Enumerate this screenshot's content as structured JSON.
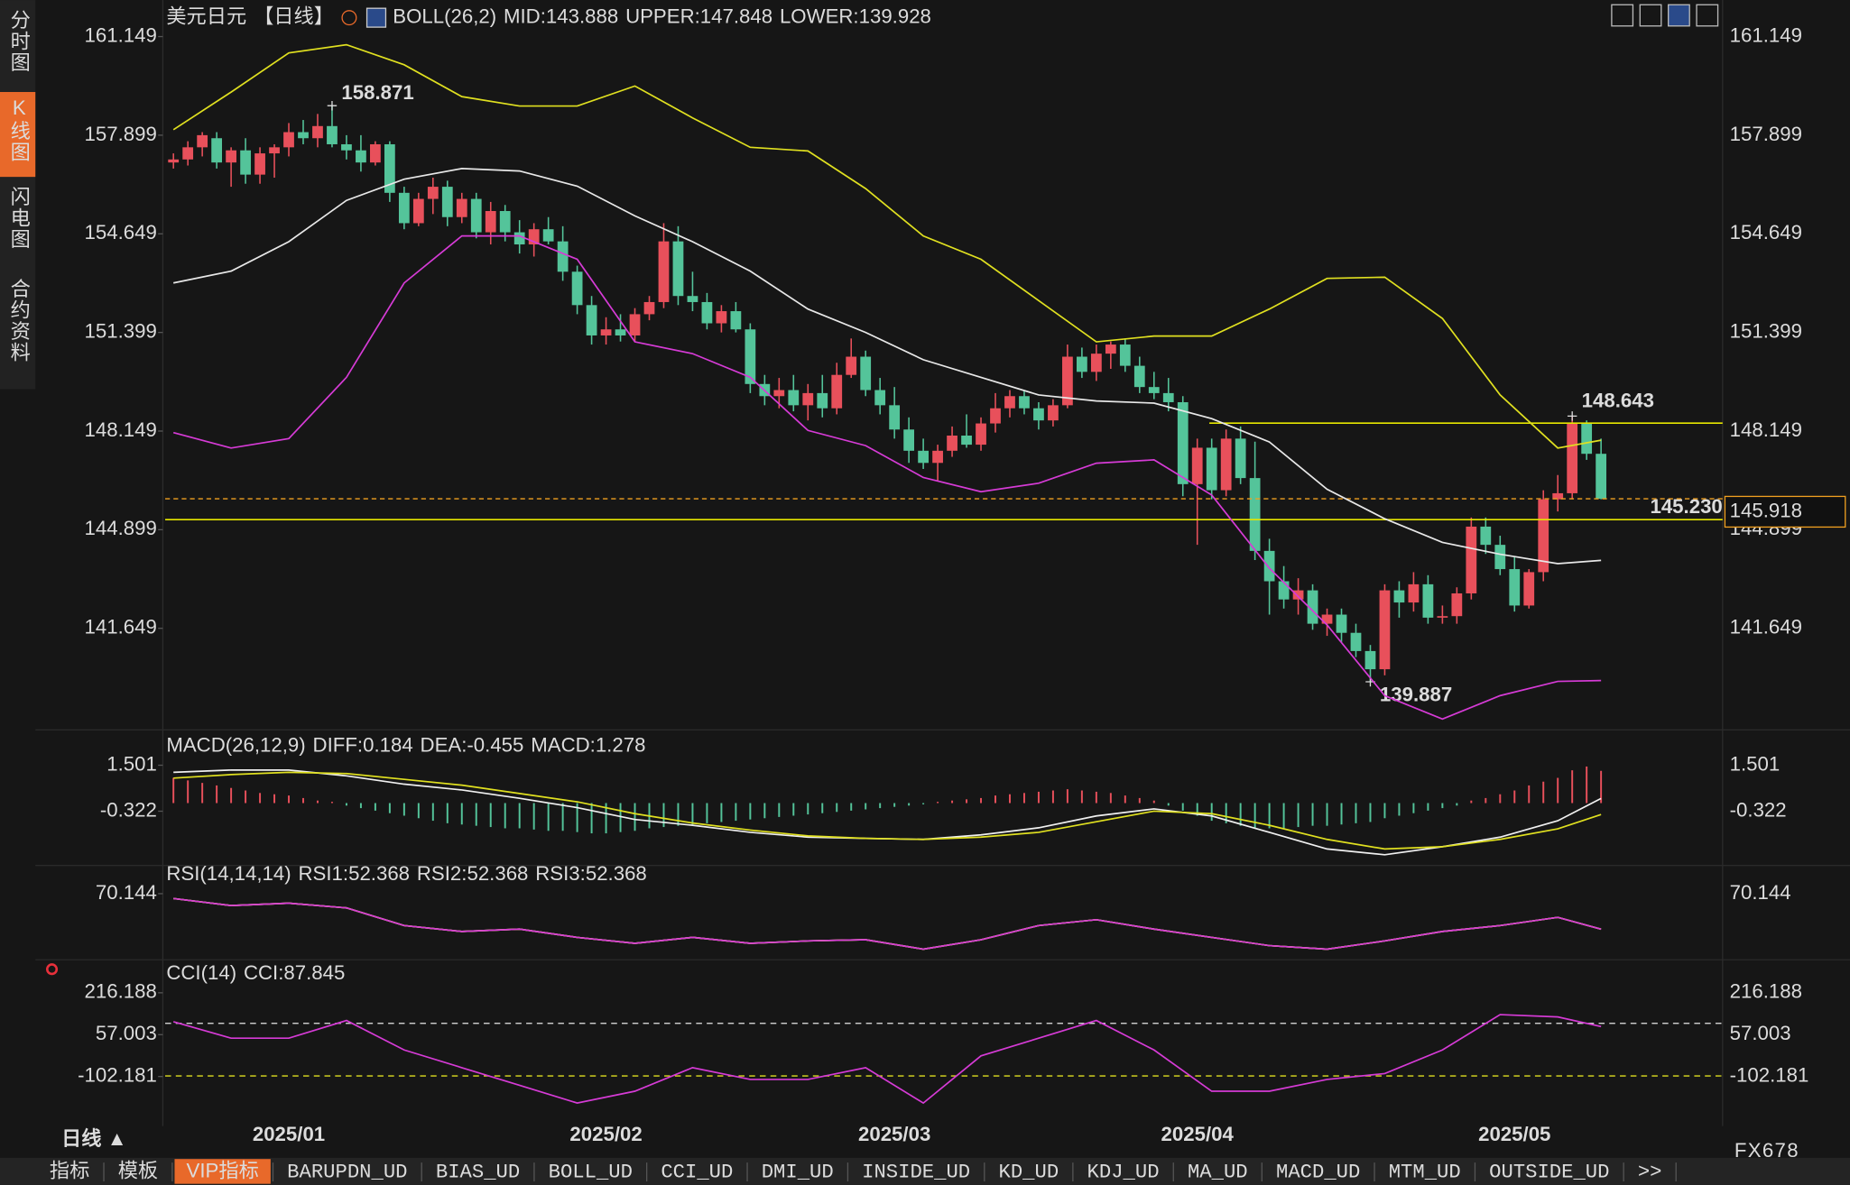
{
  "sidebar": [
    "分时图",
    "K线图",
    "闪电图",
    "合约资料"
  ],
  "chart_data": [
    {
      "type": "candlestick",
      "title": "美元日元",
      "period": "【日线】",
      "indicator": "BOLL(26,2)",
      "ylim": [
        138.38,
        161.965
      ],
      "yticks": [
        161.149,
        157.899,
        154.649,
        151.399,
        148.149,
        144.899,
        141.649
      ],
      "x_ticks": [
        {
          "value": 8,
          "label": "2025/01"
        },
        {
          "value": 30,
          "label": "2025/02"
        },
        {
          "value": 50,
          "label": "2025/03"
        },
        {
          "value": 71,
          "label": "2025/04"
        },
        {
          "value": 93,
          "label": "2025/05"
        }
      ],
      "up_color": "#e8505b",
      "down_color": "#54c49a",
      "ohlc": [
        [
          157.0,
          157.3,
          156.8,
          157.1
        ],
        [
          157.1,
          157.7,
          156.9,
          157.5
        ],
        [
          157.5,
          158.0,
          157.2,
          157.9
        ],
        [
          157.8,
          158.0,
          156.8,
          157.0
        ],
        [
          157.0,
          157.5,
          156.2,
          157.4
        ],
        [
          157.4,
          157.8,
          156.3,
          156.6
        ],
        [
          156.6,
          157.5,
          156.3,
          157.3
        ],
        [
          157.3,
          157.6,
          156.5,
          157.5
        ],
        [
          157.5,
          158.3,
          157.2,
          158.0
        ],
        [
          158.0,
          158.4,
          157.6,
          157.8
        ],
        [
          157.8,
          158.6,
          157.5,
          158.2
        ],
        [
          158.2,
          158.871,
          157.5,
          157.6
        ],
        [
          157.6,
          157.9,
          157.1,
          157.4
        ],
        [
          157.4,
          157.9,
          156.7,
          157.0
        ],
        [
          157.0,
          157.7,
          156.9,
          157.6
        ],
        [
          157.6,
          157.7,
          155.7,
          156.0
        ],
        [
          156.0,
          156.2,
          154.8,
          155.0
        ],
        [
          155.0,
          156.0,
          154.9,
          155.8
        ],
        [
          155.8,
          156.5,
          155.3,
          156.2
        ],
        [
          156.2,
          156.4,
          154.9,
          155.2
        ],
        [
          155.2,
          156.0,
          155.0,
          155.8
        ],
        [
          155.8,
          156.0,
          154.5,
          154.7
        ],
        [
          154.7,
          155.7,
          154.3,
          155.4
        ],
        [
          155.4,
          155.6,
          154.4,
          154.7
        ],
        [
          154.7,
          155.1,
          154.0,
          154.3
        ],
        [
          154.3,
          155.0,
          153.9,
          154.8
        ],
        [
          154.8,
          155.2,
          154.3,
          154.4
        ],
        [
          154.4,
          154.9,
          153.1,
          153.4
        ],
        [
          153.4,
          153.6,
          152.0,
          152.3
        ],
        [
          152.3,
          152.6,
          151.0,
          151.3
        ],
        [
          151.3,
          151.9,
          151.0,
          151.5
        ],
        [
          151.5,
          152.0,
          151.1,
          151.3
        ],
        [
          151.3,
          152.2,
          151.1,
          152.0
        ],
        [
          152.0,
          152.6,
          151.8,
          152.4
        ],
        [
          152.4,
          155.0,
          152.2,
          154.4
        ],
        [
          154.4,
          154.9,
          152.3,
          152.6
        ],
        [
          152.6,
          153.4,
          152.1,
          152.4
        ],
        [
          152.4,
          152.7,
          151.5,
          151.7
        ],
        [
          151.7,
          152.3,
          151.4,
          152.1
        ],
        [
          152.1,
          152.4,
          151.4,
          151.5
        ],
        [
          151.5,
          151.7,
          149.4,
          149.7
        ],
        [
          149.7,
          150.0,
          149.0,
          149.3
        ],
        [
          149.3,
          149.9,
          148.9,
          149.5
        ],
        [
          149.5,
          150.0,
          148.8,
          149.0
        ],
        [
          149.0,
          149.7,
          148.5,
          149.4
        ],
        [
          149.4,
          150.0,
          148.6,
          148.9
        ],
        [
          148.9,
          150.4,
          148.7,
          150.0
        ],
        [
          150.0,
          151.2,
          149.9,
          150.6
        ],
        [
          150.6,
          150.8,
          149.3,
          149.5
        ],
        [
          149.5,
          149.9,
          148.7,
          149.0
        ],
        [
          149.0,
          149.6,
          147.9,
          148.2
        ],
        [
          148.2,
          148.6,
          147.1,
          147.5
        ],
        [
          147.5,
          147.9,
          146.9,
          147.1
        ],
        [
          147.1,
          147.7,
          146.5,
          147.5
        ],
        [
          147.5,
          148.3,
          147.3,
          148.0
        ],
        [
          148.0,
          148.7,
          147.6,
          147.7
        ],
        [
          147.7,
          148.6,
          147.5,
          148.4
        ],
        [
          148.4,
          149.4,
          148.1,
          148.9
        ],
        [
          148.9,
          149.5,
          148.6,
          149.3
        ],
        [
          149.3,
          149.5,
          148.7,
          148.9
        ],
        [
          148.9,
          149.1,
          148.2,
          148.5
        ],
        [
          148.5,
          149.2,
          148.3,
          149.0
        ],
        [
          149.0,
          151.0,
          148.9,
          150.6
        ],
        [
          150.6,
          150.9,
          149.9,
          150.1
        ],
        [
          150.1,
          151.0,
          149.8,
          150.7
        ],
        [
          150.7,
          151.1,
          150.2,
          151.0
        ],
        [
          151.0,
          151.2,
          150.1,
          150.3
        ],
        [
          150.3,
          150.6,
          149.4,
          149.6
        ],
        [
          149.6,
          150.1,
          149.2,
          149.4
        ],
        [
          149.4,
          149.9,
          148.8,
          149.1
        ],
        [
          149.1,
          149.3,
          146.0,
          146.4
        ],
        [
          146.4,
          147.9,
          144.4,
          147.6
        ],
        [
          147.6,
          147.9,
          145.9,
          146.2
        ],
        [
          146.2,
          148.2,
          146.0,
          147.9
        ],
        [
          147.9,
          148.3,
          146.4,
          146.6
        ],
        [
          146.6,
          147.8,
          143.9,
          144.2
        ],
        [
          144.2,
          144.6,
          142.1,
          143.2
        ],
        [
          143.2,
          143.7,
          142.3,
          142.6
        ],
        [
          142.6,
          143.3,
          142.1,
          142.9
        ],
        [
          142.9,
          143.1,
          141.6,
          141.8
        ],
        [
          141.8,
          142.3,
          141.4,
          142.1
        ],
        [
          142.1,
          142.3,
          141.2,
          141.5
        ],
        [
          141.5,
          141.8,
          140.7,
          140.9
        ],
        [
          140.9,
          141.1,
          139.887,
          140.3
        ],
        [
          140.3,
          143.1,
          140.1,
          142.9
        ],
        [
          142.9,
          143.2,
          142.0,
          142.5
        ],
        [
          142.5,
          143.5,
          142.2,
          143.1
        ],
        [
          143.1,
          143.4,
          141.8,
          142.0
        ],
        [
          142.0,
          142.4,
          141.8,
          142.05
        ],
        [
          142.05,
          143.0,
          141.8,
          142.8
        ],
        [
          142.8,
          145.3,
          142.6,
          145.0
        ],
        [
          145.0,
          145.3,
          144.1,
          144.4
        ],
        [
          144.4,
          144.7,
          143.4,
          143.6
        ],
        [
          143.6,
          144.0,
          142.2,
          142.4
        ],
        [
          142.4,
          143.6,
          142.3,
          143.5
        ],
        [
          143.5,
          146.2,
          143.2,
          145.9
        ],
        [
          145.9,
          146.7,
          145.5,
          146.1
        ],
        [
          146.1,
          148.643,
          145.9,
          148.4
        ],
        [
          148.4,
          148.5,
          147.2,
          147.4
        ],
        [
          147.4,
          147.9,
          145.9,
          145.918
        ]
      ],
      "x": [
        0,
        4,
        8,
        12,
        16,
        20,
        24,
        28,
        32,
        36,
        40,
        44,
        48,
        52,
        56,
        60,
        64,
        68,
        72,
        76,
        80,
        84,
        88,
        92,
        96,
        99
      ],
      "series": [
        {
          "name": "MID:143.888",
          "color": "#e8e8e8",
          "values": [
            153.03,
            153.42,
            154.39,
            155.75,
            156.45,
            156.8,
            156.72,
            156.22,
            155.24,
            154.39,
            153.42,
            152.17,
            151.4,
            150.5,
            149.92,
            149.34,
            149.14,
            149.07,
            148.56,
            147.79,
            146.23,
            145.26,
            144.48,
            144.09,
            143.78,
            143.888
          ]
        },
        {
          "name": "UPPER:147.848",
          "color": "#e0e020",
          "values": [
            158.08,
            159.32,
            160.61,
            160.88,
            160.22,
            159.17,
            158.86,
            158.86,
            159.52,
            158.47,
            157.5,
            157.38,
            156.14,
            154.58,
            153.81,
            152.45,
            151.09,
            151.28,
            151.28,
            152.17,
            153.18,
            153.22,
            151.86,
            149.34,
            147.59,
            147.848
          ]
        },
        {
          "name": "LOWER:139.928",
          "color": "#d63bd6",
          "values": [
            148.1,
            147.59,
            147.9,
            149.92,
            153.03,
            154.58,
            154.58,
            153.81,
            151.09,
            150.7,
            149.92,
            148.17,
            147.67,
            146.62,
            146.15,
            146.43,
            147.09,
            147.2,
            146.04,
            143.63,
            141.76,
            139.43,
            138.66,
            139.43,
            139.9,
            139.928
          ]
        }
      ],
      "hlines": [
        {
          "value": 145.23,
          "label": "145.230",
          "color": "#e6e600"
        },
        {
          "value": 148.41,
          "color": "#e6e600"
        }
      ],
      "last_price_color": "#f0a020"
    },
    {
      "type": "macd",
      "title": "MACD(26,12,9)",
      "ylim": [
        -2.286,
        2.763
      ],
      "yticks": [
        1.501,
        -0.322
      ],
      "x": [
        0,
        4,
        8,
        12,
        16,
        20,
        24,
        28,
        32,
        36,
        40,
        44,
        48,
        52,
        56,
        60,
        64,
        68,
        72,
        76,
        80,
        84,
        88,
        92,
        96,
        99
      ],
      "series": [
        {
          "name": "DIFF:0.184",
          "color": "#f0f0f0",
          "values": [
            1.22,
            1.31,
            1.31,
            1.08,
            0.75,
            0.52,
            0.19,
            -0.18,
            -0.65,
            -0.88,
            -1.16,
            -1.35,
            -1.4,
            -1.44,
            -1.26,
            -0.98,
            -0.51,
            -0.23,
            -0.51,
            -1.16,
            -1.82,
            -2.05,
            -1.73,
            -1.35,
            -0.7,
            0.184
          ]
        },
        {
          "name": "DEA:-0.455",
          "color": "#e0e020",
          "values": [
            0.99,
            1.13,
            1.22,
            1.17,
            0.94,
            0.71,
            0.38,
            0.05,
            -0.42,
            -0.79,
            -1.07,
            -1.3,
            -1.4,
            -1.44,
            -1.35,
            -1.16,
            -0.74,
            -0.32,
            -0.42,
            -0.88,
            -1.44,
            -1.82,
            -1.73,
            -1.44,
            -1.02,
            -0.455
          ]
        }
      ],
      "histogram": {
        "name": "MACD:1.278",
        "color": "#d63bd6",
        "up_color": "#e8505b",
        "down_color": "#54c49a",
        "values": [
          1.0,
          0.9,
          0.8,
          0.7,
          0.6,
          0.5,
          0.4,
          0.35,
          0.3,
          0.2,
          0.1,
          0.05,
          -0.1,
          -0.2,
          -0.3,
          -0.4,
          -0.5,
          -0.6,
          -0.7,
          -0.8,
          -0.85,
          -0.9,
          -0.95,
          -1.0,
          -1.0,
          -1.05,
          -1.1,
          -1.1,
          -1.15,
          -1.2,
          -1.2,
          -1.15,
          -1.1,
          -1.0,
          -0.95,
          -0.9,
          -0.85,
          -0.8,
          -0.75,
          -0.7,
          -0.65,
          -0.6,
          -0.55,
          -0.5,
          -0.45,
          -0.4,
          -0.35,
          -0.3,
          -0.25,
          -0.2,
          -0.15,
          -0.1,
          -0.05,
          0.05,
          0.1,
          0.15,
          0.2,
          0.3,
          0.35,
          0.4,
          0.45,
          0.5,
          0.55,
          0.5,
          0.45,
          0.4,
          0.3,
          0.2,
          0.1,
          -0.1,
          -0.3,
          -0.5,
          -0.7,
          -0.8,
          -0.9,
          -1.0,
          -1.0,
          -1.0,
          -0.95,
          -0.9,
          -0.9,
          -0.85,
          -0.8,
          -0.75,
          -0.6,
          -0.5,
          -0.4,
          -0.3,
          -0.2,
          -0.1,
          0.1,
          0.2,
          0.35,
          0.5,
          0.7,
          0.85,
          1.0,
          1.3,
          1.45,
          1.278
        ]
      }
    },
    {
      "type": "line",
      "title": "RSI(14,14,14)",
      "ylim": [
        30,
        76
      ],
      "yticks": [
        70.144
      ],
      "x": [
        0,
        4,
        8,
        12,
        16,
        20,
        24,
        28,
        32,
        36,
        40,
        44,
        48,
        52,
        56,
        60,
        64,
        68,
        72,
        76,
        80,
        84,
        88,
        92,
        96,
        99
      ],
      "series": [
        {
          "name": "RSI1:52.368",
          "color": "#f0f0f0",
          "values": [
            67.74,
            64.21,
            65.39,
            63.03,
            54.18,
            51.23,
            52.41,
            48.28,
            45.33,
            48.28,
            45.33,
            46.51,
            47.1,
            42.39,
            47.1,
            54.18,
            57.13,
            52.41,
            48.28,
            44.16,
            42.39,
            46.51,
            51.23,
            54.18,
            58.31,
            52.368
          ]
        },
        {
          "name": "RSI2:52.368",
          "color": "#e0e020",
          "values": [
            67.74,
            64.21,
            65.39,
            63.03,
            54.18,
            51.23,
            52.41,
            48.28,
            45.33,
            48.28,
            45.33,
            46.51,
            47.1,
            42.39,
            47.1,
            54.18,
            57.13,
            52.41,
            48.28,
            44.16,
            42.39,
            46.51,
            51.23,
            54.18,
            58.31,
            52.368
          ]
        },
        {
          "name": "RSI3:52.368",
          "color": "#d63bd6",
          "values": [
            67.74,
            64.21,
            65.39,
            63.03,
            54.18,
            51.23,
            52.41,
            48.28,
            45.33,
            48.28,
            45.33,
            46.51,
            47.1,
            42.39,
            47.1,
            54.18,
            57.13,
            52.41,
            48.28,
            44.16,
            42.39,
            46.51,
            51.23,
            54.18,
            58.31,
            52.368
          ]
        }
      ]
    },
    {
      "type": "line",
      "title": "CCI(14)",
      "ylim": [
        -268.1,
        247.58
      ],
      "yticks": [
        216.188,
        57.003,
        -102.181
      ],
      "levels": [
        {
          "value": 100,
          "color": "#e8e8e8"
        },
        {
          "value": -100,
          "color": "#e0e020"
        }
      ],
      "x": [
        0,
        4,
        8,
        12,
        16,
        20,
        24,
        28,
        32,
        36,
        40,
        44,
        48,
        52,
        56,
        60,
        64,
        68,
        72,
        76,
        80,
        84,
        88,
        92,
        96,
        99
      ],
      "series": [
        {
          "name": "CCI:87.845",
          "color": "#d63bd6",
          "values": [
            106.3,
            43.5,
            43.5,
            110.8,
            -1.3,
            -68.6,
            -135.8,
            -203.1,
            -158.2,
            -68.6,
            -113.4,
            -113.4,
            -68.6,
            -203.1,
            -23.7,
            43.5,
            110.8,
            -1.3,
            -158.2,
            -158.2,
            -113.4,
            -91.0,
            -1.3,
            133.2,
            124.3,
            87.845
          ]
        }
      ]
    }
  ],
  "footer": {
    "period": "日线 ▲",
    "brand": "FX678"
  },
  "toolbar": [
    "指标",
    "模板",
    "VIP指标",
    "BARUPDN_UD",
    "BIAS_UD",
    "BOLL_UD",
    "CCI_UD",
    "DMI_UD",
    "INSIDE_UD",
    "KD_UD",
    "KDJ_UD",
    "MA_UD",
    "MACD_UD",
    "MTM_UD",
    "OUTSIDE_UD",
    ">>"
  ]
}
